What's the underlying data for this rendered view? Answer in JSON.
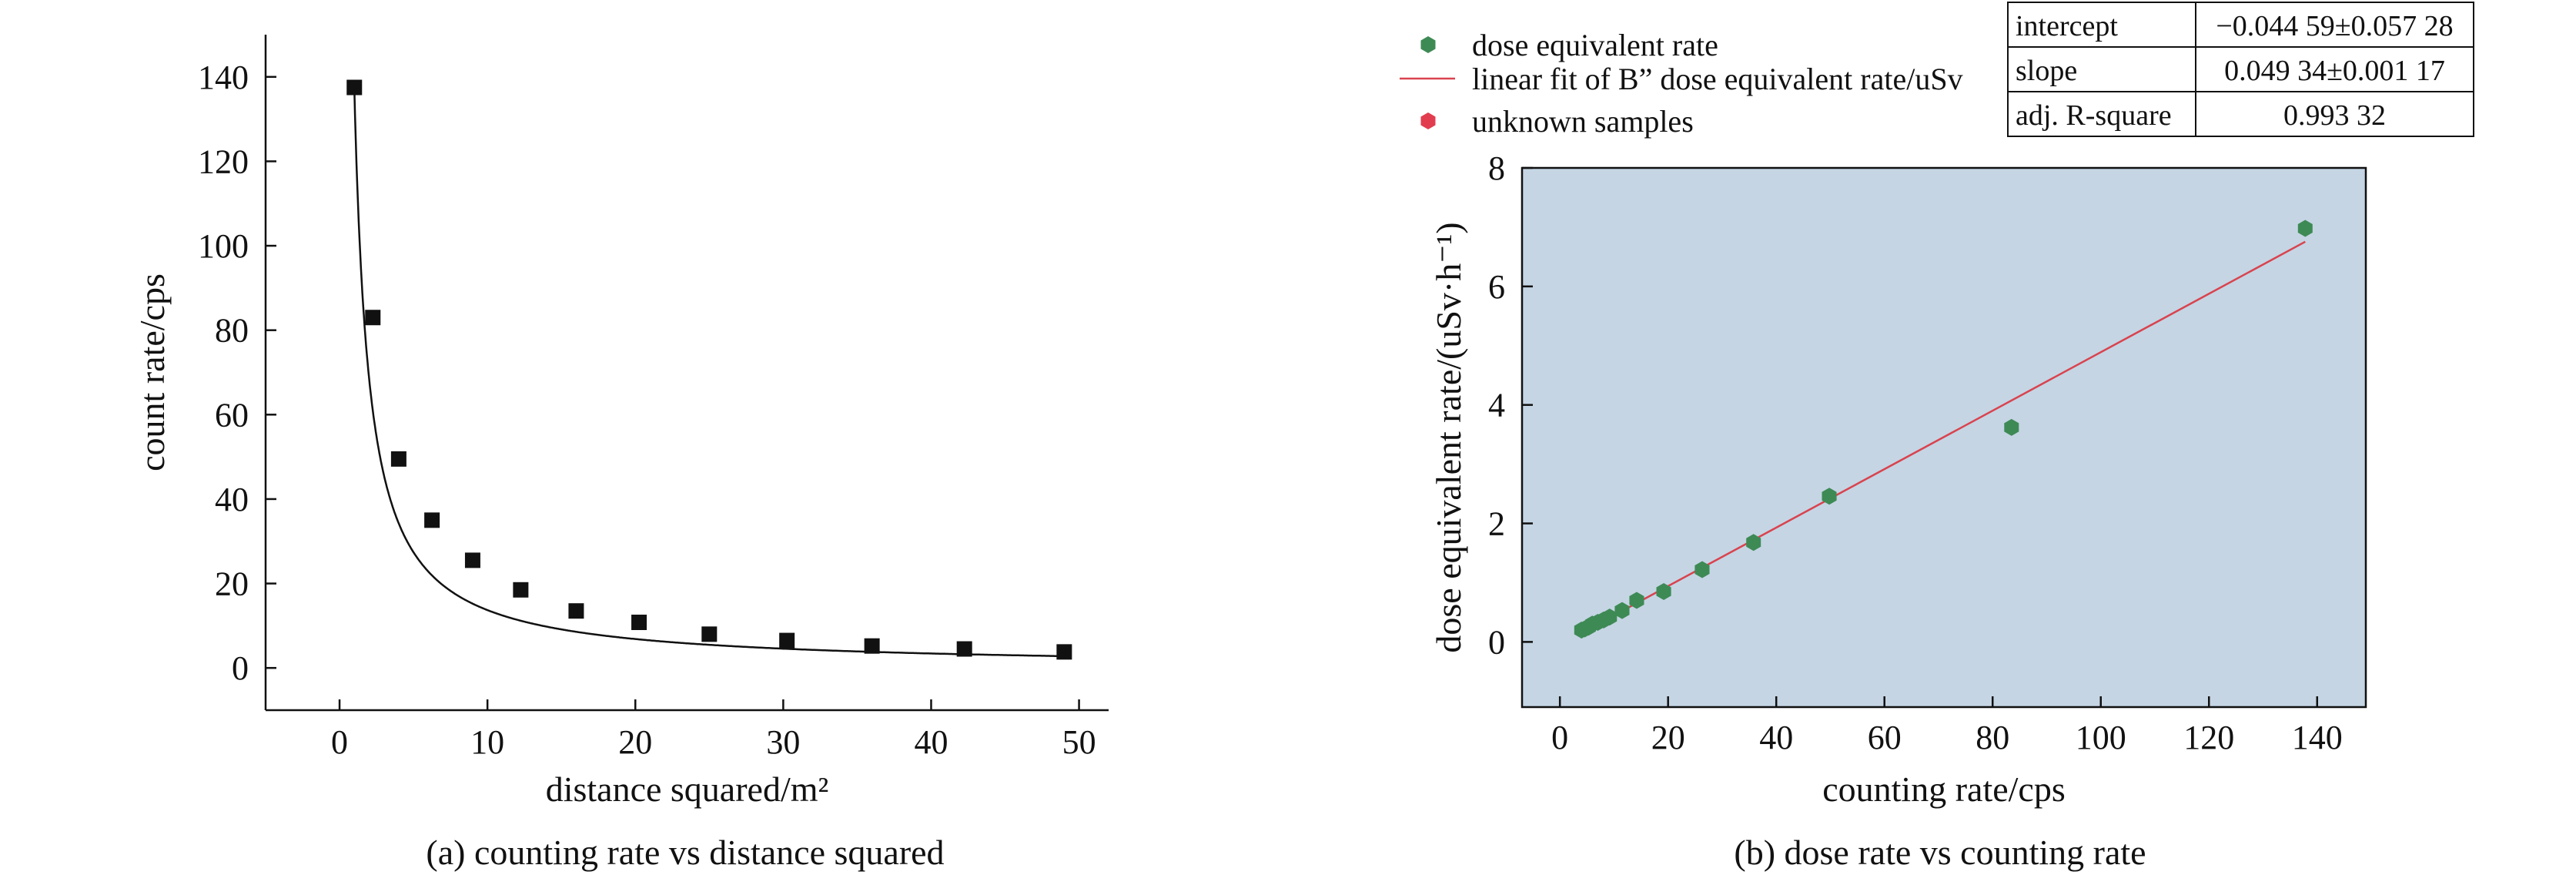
{
  "chart_data": [
    {
      "type": "scatter",
      "caption": "(a) counting rate vs distance squared",
      "xlabel": "distance squared/m²",
      "ylabel": "count rate/cps",
      "xlim": [
        -5,
        52
      ],
      "ylim": [
        -10,
        150
      ],
      "xticks": [
        0,
        10,
        20,
        30,
        40,
        50
      ],
      "yticks": [
        0,
        20,
        40,
        60,
        80,
        100,
        120,
        140
      ],
      "grid": false,
      "series": [
        {
          "marker": "square",
          "color": "#111111",
          "x": [
            1,
            2.25,
            4,
            6.25,
            9,
            12.25,
            16,
            20.25,
            25,
            30.25,
            36,
            42.25,
            49
          ],
          "y": [
            137.5,
            83,
            49.5,
            35,
            25.5,
            18.5,
            13.5,
            10.8,
            8,
            6.5,
            5.2,
            4.5,
            3.8
          ]
        }
      ],
      "fit_curve": {
        "form": "a/x",
        "a": 137,
        "color": "#111111"
      }
    },
    {
      "type": "scatter",
      "caption": "(b) dose rate vs counting rate",
      "xlabel": "counting rate/cps",
      "ylabel": "dose equivalent rate/(uSv·h⁻¹)",
      "xlim": [
        -7,
        149
      ],
      "ylim": [
        -1.1,
        8
      ],
      "xticks": [
        0,
        20,
        40,
        60,
        80,
        100,
        120,
        140
      ],
      "yticks": [
        0,
        2,
        4,
        6,
        8
      ],
      "grid": false,
      "plot_background": "#c5d5e4",
      "legend": {
        "position": "top-left",
        "entries": [
          {
            "label": "dose equivalent rate",
            "marker": "hexagon",
            "color": "#3e8a55"
          },
          {
            "label": "linear fit of B” dose equivalent rate/uSv",
            "marker": "line",
            "color": "#d9434e"
          },
          {
            "label": "unknown samples",
            "marker": "hexagon",
            "color": "#e23d4f"
          }
        ]
      },
      "series": [
        {
          "name": "dose equivalent rate",
          "marker": "hexagon",
          "color": "#3e8a55",
          "x": [
            4,
            4.6,
            5.3,
            6,
            7,
            8.1,
            9.2,
            11.5,
            14.2,
            19.2,
            26.3,
            35.8,
            49.8,
            83.5,
            137.8
          ],
          "y": [
            0.2,
            0.22,
            0.25,
            0.3,
            0.33,
            0.37,
            0.42,
            0.53,
            0.7,
            0.85,
            1.22,
            1.68,
            2.46,
            3.62,
            6.98
          ]
        }
      ],
      "fit_line": {
        "intercept": -0.04459,
        "slope": 0.04934,
        "x_range": [
          4,
          137.8
        ],
        "color": "#d9434e"
      },
      "stats_table": [
        [
          "intercept",
          "−0.044 59±0.057 28"
        ],
        [
          "slope",
          "0.049 34±0.001 17"
        ],
        [
          "adj. R-square",
          "0.993 32"
        ]
      ]
    }
  ]
}
